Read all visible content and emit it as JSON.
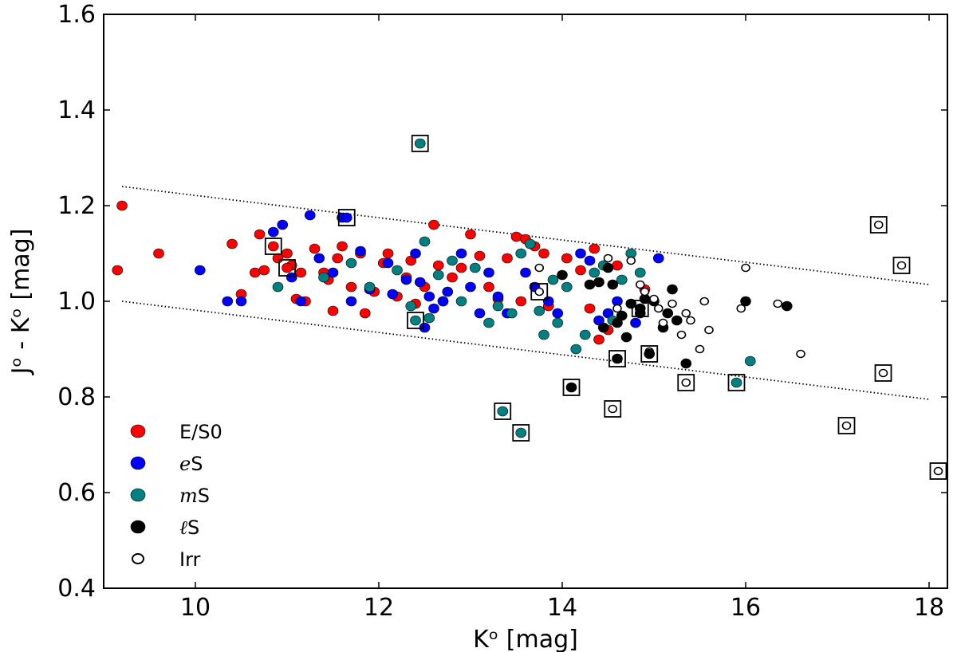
{
  "chart_data": {
    "type": "scatter",
    "title": "",
    "xlabel": "Kᵒ [mag]",
    "ylabel": "Jᵒ - Kᵒ [mag]",
    "xlim": [
      9,
      18.2
    ],
    "ylim": [
      0.4,
      1.6
    ],
    "xticks": [
      10,
      12,
      14,
      16,
      18
    ],
    "yticks": [
      0.4,
      0.6,
      0.8,
      1.0,
      1.2,
      1.4,
      1.6
    ],
    "xtick_labels": [
      "10",
      "12",
      "14",
      "16",
      "18"
    ],
    "ytick_labels": [
      "0.4",
      "0.6",
      "0.8",
      "1.0",
      "1.2",
      "1.4",
      "1.6"
    ],
    "grid": false,
    "legend_position": "lower-left",
    "colors": {
      "ES0": "#ff0000",
      "eS": "#0000ff",
      "mS": "#008080",
      "lS": "#000000",
      "Irr": "#ffffff"
    },
    "reference_lines": [
      {
        "name": "upper bound",
        "x": [
          9.2,
          18
        ],
        "y": [
          1.24,
          1.035
        ]
      },
      {
        "name": "lower bound",
        "x": [
          9.2,
          18
        ],
        "y": [
          1.0,
          0.795
        ]
      }
    ],
    "series": [
      {
        "name": "E/S0",
        "label_prefix": "",
        "label_suffix": "E/S0",
        "color": "#ff0000",
        "x": [
          9.15,
          9.2,
          9.6,
          10.4,
          10.5,
          10.65,
          10.7,
          10.75,
          10.9,
          11.0,
          11.05,
          11.1,
          11.15,
          11.2,
          11.3,
          11.4,
          11.45,
          11.5,
          11.55,
          11.6,
          11.7,
          11.8,
          11.85,
          11.95,
          12.05,
          12.1,
          12.2,
          12.3,
          12.35,
          12.4,
          12.5,
          12.6,
          12.65,
          12.7,
          12.8,
          12.9,
          13.0,
          13.1,
          13.2,
          13.3,
          13.4,
          13.5,
          13.55,
          13.6,
          13.7,
          13.8,
          13.85,
          14.05,
          14.2,
          14.3,
          14.35,
          14.4,
          14.5,
          14.6,
          14.9
        ],
        "y": [
          1.065,
          1.2,
          1.1,
          1.12,
          1.015,
          1.06,
          1.14,
          1.065,
          1.09,
          1.1,
          1.075,
          1.005,
          1.06,
          1.0,
          1.11,
          1.06,
          1.045,
          0.98,
          1.09,
          1.115,
          1.03,
          1.1,
          0.975,
          1.02,
          1.08,
          1.1,
          1.01,
          1.05,
          1.085,
          0.995,
          1.03,
          1.16,
          1.075,
          1.0,
          1.05,
          1.07,
          1.14,
          1.095,
          1.03,
          1.005,
          1.09,
          1.135,
          1.0,
          1.13,
          1.115,
          1.1,
          0.99,
          1.09,
          1.065,
          0.985,
          1.11,
          0.92,
          0.94,
          1.075,
          1.025
        ]
      },
      {
        "name": "eS",
        "label_prefix": "e",
        "label_suffix": "S",
        "color": "#0000ff",
        "x": [
          10.05,
          10.35,
          10.5,
          10.85,
          10.95,
          11.05,
          11.15,
          11.25,
          11.35,
          11.5,
          11.6,
          11.7,
          11.8,
          11.9,
          12.1,
          12.15,
          12.3,
          12.4,
          12.45,
          12.5,
          12.55,
          12.6,
          12.7,
          12.75,
          12.9,
          13.0,
          13.1,
          13.2,
          13.3,
          13.4,
          13.6,
          13.7,
          13.85,
          13.95,
          14.2,
          14.3,
          14.4,
          14.5,
          14.6,
          14.8,
          15.05
        ],
        "y": [
          1.065,
          1.0,
          1.0,
          1.145,
          1.16,
          1.05,
          1.0,
          1.18,
          1.09,
          1.06,
          1.175,
          1.0,
          1.105,
          1.025,
          1.08,
          1.015,
          1.045,
          1.1,
          1.04,
          0.945,
          1.01,
          0.985,
          1.0,
          1.02,
          1.1,
          1.03,
          0.975,
          1.06,
          1.01,
          0.975,
          1.06,
          1.03,
          1.0,
          0.975,
          1.1,
          1.085,
          0.96,
          0.975,
          1.0,
          0.955,
          1.09
        ]
      },
      {
        "name": "mS",
        "label_prefix": "m",
        "label_suffix": "S",
        "color": "#008080",
        "x": [
          10.9,
          11.4,
          11.7,
          11.9,
          12.2,
          12.35,
          12.5,
          12.55,
          12.65,
          12.8,
          12.9,
          13.05,
          13.2,
          13.3,
          13.45,
          13.55,
          13.65,
          13.75,
          13.8,
          13.9,
          13.95,
          14.05,
          14.15,
          14.25,
          14.35,
          14.45,
          14.55,
          14.65,
          14.75,
          14.85,
          16.05
        ],
        "y": [
          1.03,
          1.05,
          1.08,
          1.03,
          1.065,
          0.99,
          1.125,
          0.965,
          1.055,
          1.085,
          1.0,
          1.07,
          0.955,
          0.99,
          0.975,
          1.1,
          1.12,
          0.98,
          0.93,
          1.045,
          0.955,
          1.03,
          0.9,
          0.93,
          1.06,
          1.075,
          0.96,
          1.045,
          1.1,
          1.06,
          0.875
        ]
      },
      {
        "name": "lS",
        "label_prefix": "ℓ",
        "label_suffix": "S",
        "color": "#000000",
        "x": [
          14.0,
          14.3,
          14.4,
          14.45,
          14.5,
          14.55,
          14.6,
          14.65,
          14.7,
          14.75,
          14.85,
          14.9,
          15.0,
          15.1,
          15.15,
          15.2,
          15.25,
          15.35,
          16.0,
          16.45
        ],
        "y": [
          1.055,
          1.035,
          1.04,
          0.945,
          1.07,
          1.035,
          0.955,
          0.97,
          0.925,
          0.995,
          0.975,
          1.005,
          1.0,
          0.945,
          0.975,
          1.025,
          0.96,
          0.87,
          1.0,
          0.99
        ]
      },
      {
        "name": "Irr",
        "label_prefix": "",
        "label_suffix": "Irr",
        "color": "#ffffff",
        "x": [
          13.75,
          14.5,
          14.6,
          14.75,
          14.85,
          14.9,
          14.95,
          15.0,
          15.05,
          15.1,
          15.2,
          15.3,
          15.35,
          15.4,
          15.5,
          15.55,
          15.6,
          15.95,
          16.0,
          16.35,
          16.6
        ],
        "y": [
          1.07,
          1.09,
          0.985,
          1.085,
          1.035,
          1.02,
          0.895,
          1.005,
          0.985,
          0.955,
          0.995,
          0.93,
          0.975,
          0.96,
          0.9,
          1.0,
          0.94,
          0.985,
          1.07,
          0.995,
          0.89
        ]
      }
    ],
    "highlighted": {
      "marker": "open square",
      "points": [
        {
          "x": 12.45,
          "y": 1.33,
          "class": "mS"
        },
        {
          "x": 11.65,
          "y": 1.175,
          "class": "eS"
        },
        {
          "x": 10.85,
          "y": 1.115,
          "class": "ES0"
        },
        {
          "x": 11.0,
          "y": 1.07,
          "class": "ES0"
        },
        {
          "x": 12.4,
          "y": 0.96,
          "class": "mS"
        },
        {
          "x": 13.75,
          "y": 1.02,
          "class": "Irr"
        },
        {
          "x": 14.6,
          "y": 0.88,
          "class": "lS"
        },
        {
          "x": 14.85,
          "y": 0.985,
          "class": "lS"
        },
        {
          "x": 14.95,
          "y": 0.89,
          "class": "lS"
        },
        {
          "x": 14.1,
          "y": 0.82,
          "class": "lS"
        },
        {
          "x": 13.35,
          "y": 0.77,
          "class": "mS"
        },
        {
          "x": 13.55,
          "y": 0.725,
          "class": "mS"
        },
        {
          "x": 14.55,
          "y": 0.775,
          "class": "Irr"
        },
        {
          "x": 15.35,
          "y": 0.83,
          "class": "Irr"
        },
        {
          "x": 15.9,
          "y": 0.83,
          "class": "mS"
        },
        {
          "x": 17.1,
          "y": 0.74,
          "class": "Irr"
        },
        {
          "x": 17.45,
          "y": 1.16,
          "class": "Irr"
        },
        {
          "x": 17.7,
          "y": 1.075,
          "class": "Irr"
        },
        {
          "x": 17.5,
          "y": 0.85,
          "class": "Irr"
        },
        {
          "x": 18.1,
          "y": 0.645,
          "class": "Irr"
        }
      ]
    }
  }
}
